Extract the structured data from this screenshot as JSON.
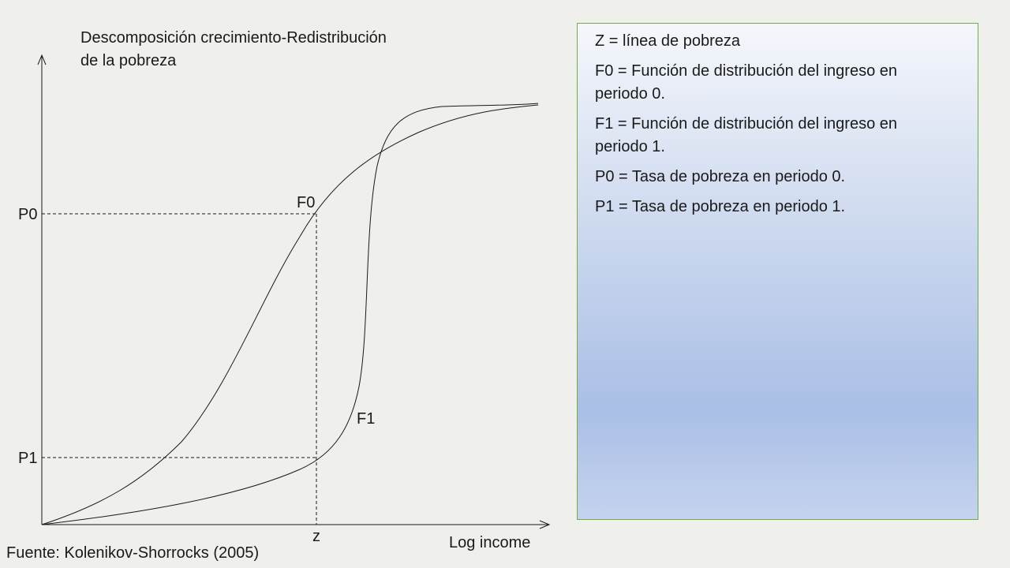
{
  "title": [
    "Descomposición crecimiento-Redistribución",
    "de la pobreza"
  ],
  "axes": {
    "x_label": "Log income",
    "x_tick": "z",
    "y_ticks": [
      "P0",
      "P1"
    ]
  },
  "curves": {
    "f0_label": "F0",
    "f1_label": "F1"
  },
  "legend": {
    "items": [
      "Z = línea de pobreza",
      "F0 = Función de distribución del ingreso en periodo 0.",
      "F1 = Función de distribución del ingreso en periodo 1.",
      "P0 = Tasa de pobreza en periodo 0.",
      "P1 = Tasa de pobreza en periodo 1."
    ]
  },
  "source": "Fuente: Kolenikov-Shorrocks (2005)",
  "colors": {
    "background": "#eff0eb",
    "box_border": "#70ad47",
    "box_gradient_mid": "#aabfe6",
    "line": "#1a1a1a"
  }
}
